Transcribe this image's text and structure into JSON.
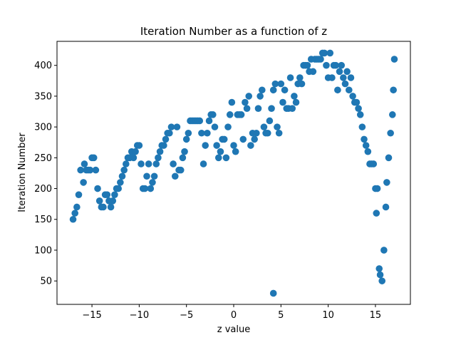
{
  "chart_data": {
    "type": "scatter",
    "title": "Iteration Number as a function of z",
    "xlabel": "z value",
    "ylabel": "Iteration Number",
    "xlim": [
      -18.7,
      18.7
    ],
    "ylim": [
      12,
      439
    ],
    "xticks": [
      -15,
      -10,
      -5,
      0,
      5,
      10,
      15
    ],
    "xtick_labels": [
      "−15",
      "−10",
      "−5",
      "0",
      "5",
      "10",
      "15"
    ],
    "yticks": [
      50,
      100,
      150,
      200,
      250,
      300,
      350,
      400
    ],
    "ytick_labels": [
      "50",
      "100",
      "150",
      "200",
      "250",
      "300",
      "350",
      "400"
    ],
    "grid": false,
    "marker_color": "#1f77b4",
    "series": [
      {
        "points": [
          [
            -17.0,
            150
          ],
          [
            -16.8,
            160
          ],
          [
            -16.6,
            170
          ],
          [
            -16.4,
            190
          ],
          [
            -16.2,
            230
          ],
          [
            -15.9,
            210
          ],
          [
            -15.8,
            240
          ],
          [
            -15.6,
            230
          ],
          [
            -15.4,
            230
          ],
          [
            -15.2,
            230
          ],
          [
            -15.0,
            250
          ],
          [
            -14.8,
            250
          ],
          [
            -14.6,
            230
          ],
          [
            -14.4,
            200
          ],
          [
            -14.2,
            180
          ],
          [
            -14.0,
            170
          ],
          [
            -13.8,
            170
          ],
          [
            -13.6,
            190
          ],
          [
            -13.4,
            190
          ],
          [
            -13.2,
            180
          ],
          [
            -13.0,
            170
          ],
          [
            -12.8,
            180
          ],
          [
            -12.6,
            190
          ],
          [
            -12.4,
            200
          ],
          [
            -12.2,
            200
          ],
          [
            -12.0,
            210
          ],
          [
            -11.8,
            220
          ],
          [
            -11.6,
            230
          ],
          [
            -11.4,
            240
          ],
          [
            -11.2,
            250
          ],
          [
            -11.0,
            250
          ],
          [
            -10.8,
            260
          ],
          [
            -10.6,
            250
          ],
          [
            -10.4,
            260
          ],
          [
            -10.2,
            270
          ],
          [
            -10.0,
            270
          ],
          [
            -9.8,
            240
          ],
          [
            -9.6,
            200
          ],
          [
            -9.4,
            200
          ],
          [
            -9.2,
            220
          ],
          [
            -9.0,
            240
          ],
          [
            -8.8,
            200
          ],
          [
            -8.6,
            210
          ],
          [
            -8.4,
            220
          ],
          [
            -8.2,
            240
          ],
          [
            -8.0,
            250
          ],
          [
            -7.8,
            260
          ],
          [
            -7.6,
            270
          ],
          [
            -7.4,
            270
          ],
          [
            -7.2,
            280
          ],
          [
            -7.0,
            290
          ],
          [
            -6.8,
            290
          ],
          [
            -6.6,
            300
          ],
          [
            -6.4,
            240
          ],
          [
            -6.2,
            220
          ],
          [
            -6.0,
            300
          ],
          [
            -5.8,
            230
          ],
          [
            -5.6,
            230
          ],
          [
            -5.4,
            250
          ],
          [
            -5.2,
            260
          ],
          [
            -5.0,
            280
          ],
          [
            -4.8,
            290
          ],
          [
            -4.6,
            310
          ],
          [
            -4.4,
            310
          ],
          [
            -4.2,
            310
          ],
          [
            -4.0,
            310
          ],
          [
            -3.8,
            310
          ],
          [
            -3.6,
            310
          ],
          [
            -3.4,
            290
          ],
          [
            -3.2,
            240
          ],
          [
            -3.0,
            270
          ],
          [
            -2.8,
            290
          ],
          [
            -2.6,
            310
          ],
          [
            -2.4,
            320
          ],
          [
            -2.2,
            320
          ],
          [
            -2.0,
            300
          ],
          [
            -1.8,
            270
          ],
          [
            -1.6,
            250
          ],
          [
            -1.4,
            260
          ],
          [
            -1.2,
            280
          ],
          [
            -1.0,
            280
          ],
          [
            -0.8,
            250
          ],
          [
            -0.6,
            300
          ],
          [
            -0.4,
            320
          ],
          [
            -0.2,
            340
          ],
          [
            0.0,
            270
          ],
          [
            0.2,
            260
          ],
          [
            0.4,
            320
          ],
          [
            0.6,
            320
          ],
          [
            0.8,
            320
          ],
          [
            1.0,
            280
          ],
          [
            1.2,
            340
          ],
          [
            1.4,
            330
          ],
          [
            1.6,
            350
          ],
          [
            1.8,
            270
          ],
          [
            2.0,
            290
          ],
          [
            2.2,
            280
          ],
          [
            2.4,
            290
          ],
          [
            2.6,
            330
          ],
          [
            2.8,
            350
          ],
          [
            3.0,
            360
          ],
          [
            3.2,
            300
          ],
          [
            3.4,
            290
          ],
          [
            3.6,
            290
          ],
          [
            3.8,
            310
          ],
          [
            4.0,
            330
          ],
          [
            4.2,
            360
          ],
          [
            4.4,
            370
          ],
          [
            4.6,
            300
          ],
          [
            4.8,
            290
          ],
          [
            5.0,
            370
          ],
          [
            5.2,
            340
          ],
          [
            4.2,
            30
          ],
          [
            5.4,
            360
          ],
          [
            5.6,
            330
          ],
          [
            5.8,
            330
          ],
          [
            6.0,
            380
          ],
          [
            6.2,
            330
          ],
          [
            6.4,
            350
          ],
          [
            6.6,
            340
          ],
          [
            6.8,
            370
          ],
          [
            7.0,
            380
          ],
          [
            7.2,
            370
          ],
          [
            7.4,
            400
          ],
          [
            7.6,
            400
          ],
          [
            7.8,
            400
          ],
          [
            8.0,
            390
          ],
          [
            8.2,
            410
          ],
          [
            8.4,
            390
          ],
          [
            8.6,
            410
          ],
          [
            8.8,
            410
          ],
          [
            9.0,
            410
          ],
          [
            9.2,
            410
          ],
          [
            9.4,
            420
          ],
          [
            9.6,
            420
          ],
          [
            9.8,
            400
          ],
          [
            10.0,
            380
          ],
          [
            10.2,
            420
          ],
          [
            10.4,
            380
          ],
          [
            10.6,
            400
          ],
          [
            10.8,
            400
          ],
          [
            11.0,
            360
          ],
          [
            11.2,
            390
          ],
          [
            11.4,
            400
          ],
          [
            11.6,
            380
          ],
          [
            11.8,
            370
          ],
          [
            12.0,
            390
          ],
          [
            12.2,
            360
          ],
          [
            12.4,
            380
          ],
          [
            12.6,
            350
          ],
          [
            12.8,
            340
          ],
          [
            13.0,
            340
          ],
          [
            13.2,
            330
          ],
          [
            13.4,
            320
          ],
          [
            13.6,
            300
          ],
          [
            13.8,
            280
          ],
          [
            14.0,
            270
          ],
          [
            14.2,
            260
          ],
          [
            14.4,
            240
          ],
          [
            14.6,
            240
          ],
          [
            14.8,
            240
          ],
          [
            15.0,
            200
          ],
          [
            15.1,
            160
          ],
          [
            15.2,
            200
          ],
          [
            15.4,
            70
          ],
          [
            15.5,
            60
          ],
          [
            15.7,
            50
          ],
          [
            15.9,
            100
          ],
          [
            16.1,
            170
          ],
          [
            16.2,
            210
          ],
          [
            16.4,
            250
          ],
          [
            16.6,
            290
          ],
          [
            16.8,
            320
          ],
          [
            16.9,
            360
          ],
          [
            17.0,
            410
          ]
        ]
      }
    ]
  }
}
